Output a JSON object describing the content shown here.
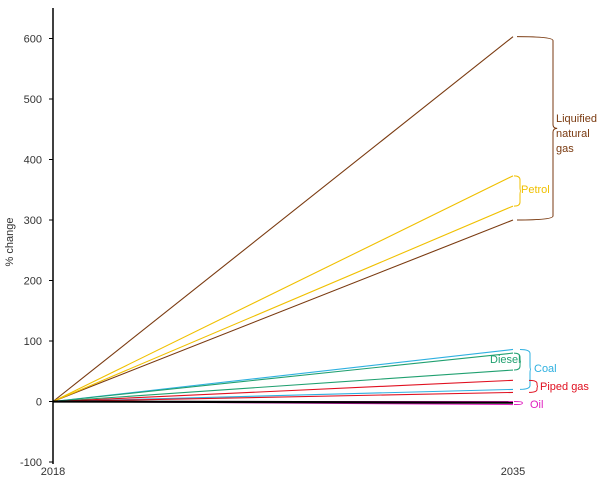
{
  "chart_data": {
    "type": "line",
    "title": "",
    "xlabel": "",
    "ylabel": "% change",
    "x": [
      "2018",
      "2035"
    ],
    "ylim": [
      -100,
      620
    ],
    "yticks": [
      -100,
      0,
      100,
      200,
      300,
      400,
      500,
      600
    ],
    "grid": false,
    "legend": "none",
    "series": [
      {
        "key": "lng_high",
        "values": [
          0,
          603
        ],
        "color": "#7a3a10"
      },
      {
        "key": "lng_low",
        "values": [
          0,
          300
        ],
        "color": "#7a3a10"
      },
      {
        "key": "petrol_high",
        "values": [
          0,
          373
        ],
        "color": "#f0c000"
      },
      {
        "key": "petrol_low",
        "values": [
          0,
          323
        ],
        "color": "#f0c000"
      },
      {
        "key": "coal_high",
        "values": [
          0,
          86
        ],
        "color": "#2eb0e0"
      },
      {
        "key": "coal_low",
        "values": [
          0,
          20
        ],
        "color": "#2eb0e0"
      },
      {
        "key": "diesel_high",
        "values": [
          0,
          80
        ],
        "color": "#20a070"
      },
      {
        "key": "diesel_low",
        "values": [
          0,
          52
        ],
        "color": "#20a070"
      },
      {
        "key": "piped_gas_high",
        "values": [
          0,
          35
        ],
        "color": "#e01020"
      },
      {
        "key": "piped_gas_low",
        "values": [
          0,
          15
        ],
        "color": "#e01020"
      },
      {
        "key": "oil_high",
        "values": [
          0,
          0
        ],
        "color": "#e020c0"
      },
      {
        "key": "oil_low",
        "values": [
          0,
          -5
        ],
        "color": "#e020c0"
      },
      {
        "key": "baseline",
        "values": [
          0,
          -2
        ],
        "color": "#000000"
      }
    ],
    "annotations": [
      {
        "key": "lng",
        "text": [
          "Liquified",
          "natural",
          "gas"
        ],
        "color": "#7a3a10",
        "range": [
          300,
          603
        ]
      },
      {
        "key": "petrol",
        "text": [
          "Petrol"
        ],
        "color": "#f0c000",
        "range": [
          323,
          373
        ]
      },
      {
        "key": "diesel",
        "text": [
          "Diesel"
        ],
        "color": "#20a070",
        "range": [
          52,
          80
        ]
      },
      {
        "key": "coal",
        "text": [
          "Coal"
        ],
        "color": "#2eb0e0",
        "range": [
          20,
          86
        ]
      },
      {
        "key": "piped_gas",
        "text": [
          "Piped gas"
        ],
        "color": "#e01020",
        "range": [
          15,
          35
        ]
      },
      {
        "key": "oil",
        "text": [
          "Oil"
        ],
        "color": "#e020c0",
        "range": [
          -5,
          0
        ]
      }
    ]
  }
}
